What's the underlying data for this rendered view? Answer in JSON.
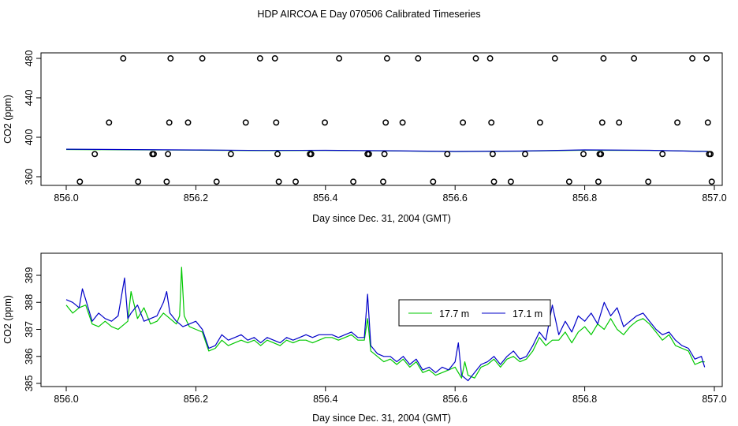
{
  "figure_title": "HDP AIRCOA E  Day 070506  Calibrated Timeseries",
  "chart_data": [
    {
      "type": "scatter",
      "title": "",
      "xlabel": "Day since Dec. 31, 2004 (GMT)",
      "ylabel": "CO2 (ppm)",
      "xlim": [
        856.0,
        857.0
      ],
      "ylim": [
        352,
        484
      ],
      "x_ticks": [
        "856.0",
        "856.2",
        "856.4",
        "856.6",
        "856.8",
        "857.0"
      ],
      "x_tick_values": [
        856.0,
        856.2,
        856.4,
        856.6,
        856.8,
        857.0
      ],
      "y_ticks": [
        "360",
        "400",
        "440",
        "480"
      ],
      "y_tick_values": [
        360,
        400,
        440,
        480
      ],
      "colors": {
        "circle": "#000000",
        "line1": "#00c800",
        "line2": "#0000c8"
      },
      "points": [
        [
          856.021,
          355
        ],
        [
          856.044,
          383
        ],
        [
          856.066,
          415
        ],
        [
          856.088,
          480
        ],
        [
          856.111,
          355
        ],
        [
          856.133,
          383
        ],
        [
          856.135,
          383
        ],
        [
          856.155,
          355
        ],
        [
          856.157,
          383
        ],
        [
          856.159,
          415
        ],
        [
          856.161,
          480
        ],
        [
          856.188,
          415
        ],
        [
          856.21,
          480
        ],
        [
          856.232,
          355
        ],
        [
          856.254,
          383
        ],
        [
          856.277,
          415
        ],
        [
          856.299,
          480
        ],
        [
          856.322,
          480
        ],
        [
          856.324,
          415
        ],
        [
          856.326,
          383
        ],
        [
          856.328,
          355
        ],
        [
          856.354,
          355
        ],
        [
          856.376,
          383
        ],
        [
          856.378,
          383
        ],
        [
          856.399,
          415
        ],
        [
          856.421,
          480
        ],
        [
          856.443,
          355
        ],
        [
          856.465,
          383
        ],
        [
          856.467,
          383
        ],
        [
          856.489,
          355
        ],
        [
          856.491,
          383
        ],
        [
          856.493,
          415
        ],
        [
          856.495,
          480
        ],
        [
          856.519,
          415
        ],
        [
          856.543,
          480
        ],
        [
          856.566,
          355
        ],
        [
          856.588,
          383
        ],
        [
          856.612,
          415
        ],
        [
          856.632,
          480
        ],
        [
          856.654,
          480
        ],
        [
          856.656,
          415
        ],
        [
          856.658,
          383
        ],
        [
          856.66,
          355
        ],
        [
          856.686,
          355
        ],
        [
          856.708,
          383
        ],
        [
          856.731,
          415
        ],
        [
          856.754,
          480
        ],
        [
          856.776,
          355
        ],
        [
          856.798,
          383
        ],
        [
          856.821,
          355
        ],
        [
          856.823,
          383
        ],
        [
          856.825,
          383
        ],
        [
          856.827,
          415
        ],
        [
          856.829,
          480
        ],
        [
          856.853,
          415
        ],
        [
          856.876,
          480
        ],
        [
          856.898,
          355
        ],
        [
          856.92,
          383
        ],
        [
          856.943,
          415
        ],
        [
          856.966,
          480
        ],
        [
          856.988,
          480
        ],
        [
          856.99,
          415
        ],
        [
          856.992,
          383
        ],
        [
          856.994,
          383
        ],
        [
          856.996,
          355
        ]
      ],
      "series": [
        {
          "values_x": [
            856.0,
            856.1,
            856.2,
            856.3,
            856.4,
            856.5,
            856.6,
            856.7,
            856.8,
            856.9,
            856.99
          ],
          "values_y": [
            387.6,
            387.3,
            387.0,
            386.5,
            386.6,
            386.2,
            385.5,
            385.9,
            386.9,
            386.6,
            385.7
          ]
        },
        {
          "values_x": [
            856.0,
            856.1,
            856.2,
            856.3,
            856.4,
            856.5,
            856.6,
            856.7,
            856.8,
            856.9,
            856.99
          ],
          "values_y": [
            387.9,
            387.5,
            387.1,
            386.6,
            386.8,
            386.3,
            385.6,
            386.0,
            387.2,
            386.8,
            385.6
          ]
        }
      ]
    },
    {
      "type": "line",
      "title": "",
      "xlabel": "Day since Dec. 31, 2004 (GMT)",
      "ylabel": "CO2 (ppm)",
      "xlim": [
        856.0,
        857.0
      ],
      "ylim": [
        384.9,
        389.6
      ],
      "x_ticks": [
        "856.0",
        "856.2",
        "856.4",
        "856.6",
        "856.8",
        "857.0"
      ],
      "x_tick_values": [
        856.0,
        856.2,
        856.4,
        856.6,
        856.8,
        857.0
      ],
      "y_ticks": [
        "385",
        "386",
        "387",
        "388",
        "389"
      ],
      "y_tick_values": [
        385,
        386,
        387,
        388,
        389
      ],
      "legend": {
        "position": "center-right",
        "entries": [
          {
            "label": "17.7 m",
            "color": "#00c800"
          },
          {
            "label": "17.1 m",
            "color": "#0000c8"
          }
        ]
      },
      "series": [
        {
          "name": "17.7 m",
          "color": "#00c800",
          "x": [
            856.0,
            856.01,
            856.02,
            856.03,
            856.04,
            856.05,
            856.06,
            856.07,
            856.08,
            856.09,
            856.095,
            856.1,
            856.11,
            856.12,
            856.13,
            856.14,
            856.15,
            856.16,
            856.17,
            856.175,
            856.178,
            856.182,
            856.19,
            856.2,
            856.21,
            856.22,
            856.23,
            856.24,
            856.25,
            856.26,
            856.27,
            856.28,
            856.29,
            856.3,
            856.31,
            856.32,
            856.33,
            856.34,
            856.35,
            856.36,
            856.37,
            856.38,
            856.39,
            856.4,
            856.41,
            856.42,
            856.43,
            856.44,
            856.45,
            856.46,
            856.465,
            856.47,
            856.48,
            856.49,
            856.5,
            856.51,
            856.52,
            856.53,
            856.54,
            856.55,
            856.56,
            856.57,
            856.58,
            856.59,
            856.6,
            856.61,
            856.615,
            856.62,
            856.63,
            856.64,
            856.65,
            856.66,
            856.67,
            856.68,
            856.69,
            856.7,
            856.71,
            856.72,
            856.73,
            856.74,
            856.75,
            856.76,
            856.77,
            856.78,
            856.79,
            856.8,
            856.81,
            856.82,
            856.83,
            856.84,
            856.85,
            856.86,
            856.87,
            856.88,
            856.89,
            856.9,
            856.91,
            856.92,
            856.93,
            856.94,
            856.95,
            856.96,
            856.97,
            856.98,
            856.985
          ],
          "y": [
            387.9,
            387.6,
            387.8,
            387.9,
            387.2,
            387.1,
            387.3,
            387.1,
            387.0,
            387.2,
            387.3,
            388.4,
            387.4,
            387.8,
            387.2,
            387.3,
            387.6,
            387.4,
            387.2,
            387.5,
            389.3,
            387.5,
            387.1,
            387.0,
            386.9,
            386.2,
            386.3,
            386.6,
            386.4,
            386.5,
            386.6,
            386.5,
            386.6,
            386.4,
            386.6,
            386.5,
            386.4,
            386.6,
            386.5,
            386.6,
            386.6,
            386.5,
            386.6,
            386.7,
            386.7,
            386.6,
            386.7,
            386.8,
            386.6,
            386.6,
            387.4,
            386.2,
            386.0,
            385.8,
            385.9,
            385.7,
            385.9,
            385.6,
            385.8,
            385.4,
            385.5,
            385.3,
            385.4,
            385.5,
            385.6,
            385.2,
            385.8,
            385.3,
            385.2,
            385.6,
            385.7,
            385.9,
            385.6,
            385.9,
            386.0,
            385.8,
            385.9,
            386.2,
            386.7,
            386.4,
            386.6,
            386.6,
            386.9,
            386.5,
            386.9,
            387.1,
            386.8,
            387.2,
            387.0,
            387.4,
            387.0,
            386.8,
            387.1,
            387.3,
            387.4,
            387.2,
            386.9,
            386.6,
            386.8,
            386.4,
            386.3,
            386.2,
            385.7,
            385.8,
            385.8
          ]
        },
        {
          "name": "17.1 m",
          "color": "#0000c8",
          "x": [
            856.0,
            856.01,
            856.02,
            856.025,
            856.03,
            856.04,
            856.05,
            856.06,
            856.07,
            856.08,
            856.09,
            856.095,
            856.1,
            856.11,
            856.12,
            856.13,
            856.14,
            856.15,
            856.155,
            856.16,
            856.17,
            856.18,
            856.19,
            856.2,
            856.21,
            856.22,
            856.23,
            856.24,
            856.25,
            856.26,
            856.27,
            856.28,
            856.29,
            856.3,
            856.31,
            856.32,
            856.33,
            856.34,
            856.35,
            856.36,
            856.37,
            856.38,
            856.39,
            856.4,
            856.41,
            856.42,
            856.43,
            856.44,
            856.45,
            856.46,
            856.465,
            856.47,
            856.48,
            856.49,
            856.5,
            856.51,
            856.52,
            856.53,
            856.54,
            856.55,
            856.56,
            856.57,
            856.58,
            856.59,
            856.6,
            856.605,
            856.61,
            856.62,
            856.63,
            856.64,
            856.65,
            856.66,
            856.67,
            856.68,
            856.69,
            856.7,
            856.71,
            856.72,
            856.73,
            856.74,
            856.75,
            856.76,
            856.77,
            856.78,
            856.79,
            856.8,
            856.81,
            856.82,
            856.83,
            856.84,
            856.85,
            856.86,
            856.87,
            856.88,
            856.89,
            856.9,
            856.91,
            856.92,
            856.93,
            856.94,
            856.95,
            856.96,
            856.97,
            856.98,
            856.985
          ],
          "y": [
            388.1,
            388.0,
            387.8,
            388.5,
            388.1,
            387.3,
            387.6,
            387.4,
            387.3,
            387.5,
            388.9,
            387.4,
            387.6,
            387.9,
            387.3,
            387.4,
            387.5,
            388.0,
            388.4,
            387.6,
            387.3,
            387.1,
            387.2,
            387.3,
            387.0,
            386.3,
            386.4,
            386.8,
            386.6,
            386.7,
            386.8,
            386.6,
            386.7,
            386.5,
            386.7,
            386.6,
            386.5,
            386.7,
            386.6,
            386.7,
            386.8,
            386.7,
            386.8,
            386.8,
            386.8,
            386.7,
            386.8,
            386.9,
            386.7,
            386.7,
            388.3,
            386.4,
            386.1,
            386.0,
            386.0,
            385.8,
            386.0,
            385.7,
            385.9,
            385.5,
            385.6,
            385.4,
            385.6,
            385.5,
            385.8,
            386.5,
            385.3,
            385.1,
            385.4,
            385.7,
            385.8,
            386.0,
            385.7,
            386.0,
            386.2,
            385.9,
            386.0,
            386.4,
            386.9,
            386.6,
            387.9,
            386.8,
            387.3,
            386.9,
            387.5,
            387.3,
            387.6,
            387.2,
            388.0,
            387.5,
            387.8,
            387.1,
            387.3,
            387.5,
            387.6,
            387.3,
            387.0,
            386.8,
            386.9,
            386.6,
            386.4,
            386.3,
            385.9,
            386.0,
            385.6
          ]
        }
      ]
    }
  ]
}
